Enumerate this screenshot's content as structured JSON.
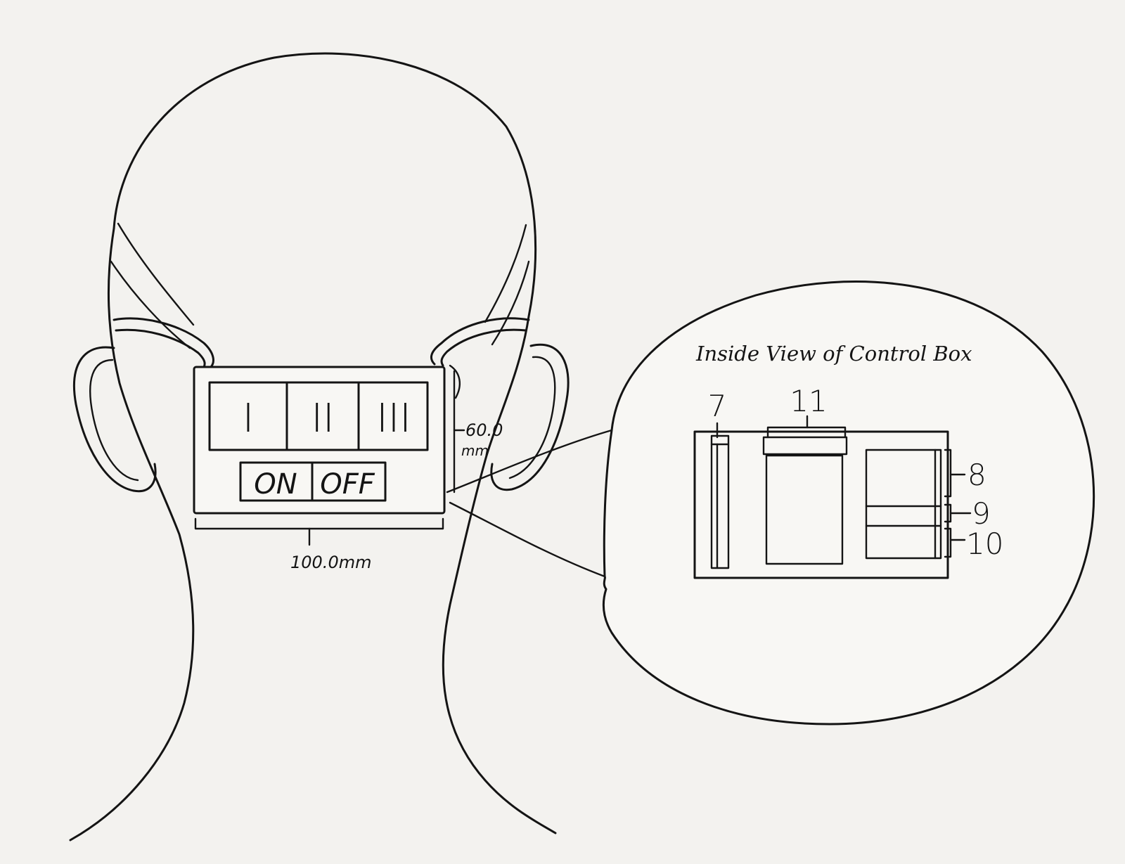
{
  "diagram": {
    "switch_labels": [
      "I",
      "II",
      "III"
    ],
    "on_label": "ON",
    "off_label": "OFF",
    "height_dimension_value": "60.0",
    "height_dimension_unit": "mm",
    "width_dimension": "100.0mm",
    "inset_title": "Inside View of Control Box",
    "callout_labels": {
      "seven": "7",
      "eight": "8",
      "nine": "9",
      "ten": "10",
      "eleven": "11"
    }
  }
}
